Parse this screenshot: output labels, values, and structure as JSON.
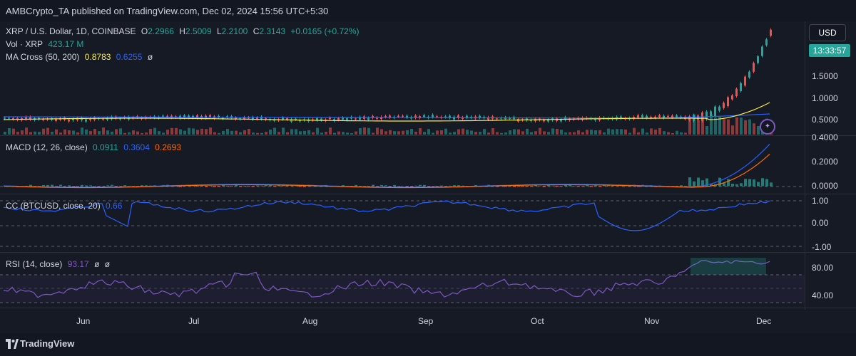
{
  "header": {
    "publisher_line": "AMBCrypto_TA published on TradingView.com, Dec 02, 2024 15:56 UTC+5:30"
  },
  "main_legend": {
    "symbol": "XRP / U.S. Dollar, 1D, COINBASE",
    "o_label": "O",
    "o_value": "2.2966",
    "h_label": "H",
    "h_value": "2.5009",
    "l_label": "L",
    "l_value": "2.2100",
    "c_label": "C",
    "c_value": "2.3143",
    "change": "+0.0165 (+0.72%)"
  },
  "vol_legend": {
    "label": "Vol · XRP",
    "value": "423.17 M"
  },
  "ma_legend": {
    "label": "MA Cross (50, 200)",
    "ma50": "0.8783",
    "ma200": "0.6255",
    "eye": "ø"
  },
  "macd_legend": {
    "label": "MACD (12, 26, close)",
    "hist": "0.0911",
    "macd": "0.3604",
    "signal": "0.2693"
  },
  "cc_legend": {
    "label": "CC (BTCUSD, close, 20)",
    "value": "0.66"
  },
  "rsi_legend": {
    "label": "RSI (14, close)",
    "value": "93.17",
    "eye1": "ø",
    "eye2": "ø"
  },
  "price_axis": {
    "currency": "USD",
    "countdown": "13:33:57",
    "ticks": [
      "1.5000",
      "1.0000",
      "0.5000",
      "0.4000"
    ]
  },
  "macd_axis": [
    "0.2000",
    "0.0000"
  ],
  "cc_axis": [
    "1.00",
    "0.00",
    "-1.00"
  ],
  "rsi_axis": [
    "80.00",
    "40.00"
  ],
  "months": [
    "Jun",
    "Jul",
    "Aug",
    "Sep",
    "Oct",
    "Nov",
    "Dec"
  ],
  "footer": {
    "brand": "TradingView"
  },
  "colors": {
    "up": "#26a69a",
    "down": "#ef5350",
    "ma50": "#ffeb3b",
    "ma200": "#2962ff",
    "rsi": "#7e57c2"
  }
}
